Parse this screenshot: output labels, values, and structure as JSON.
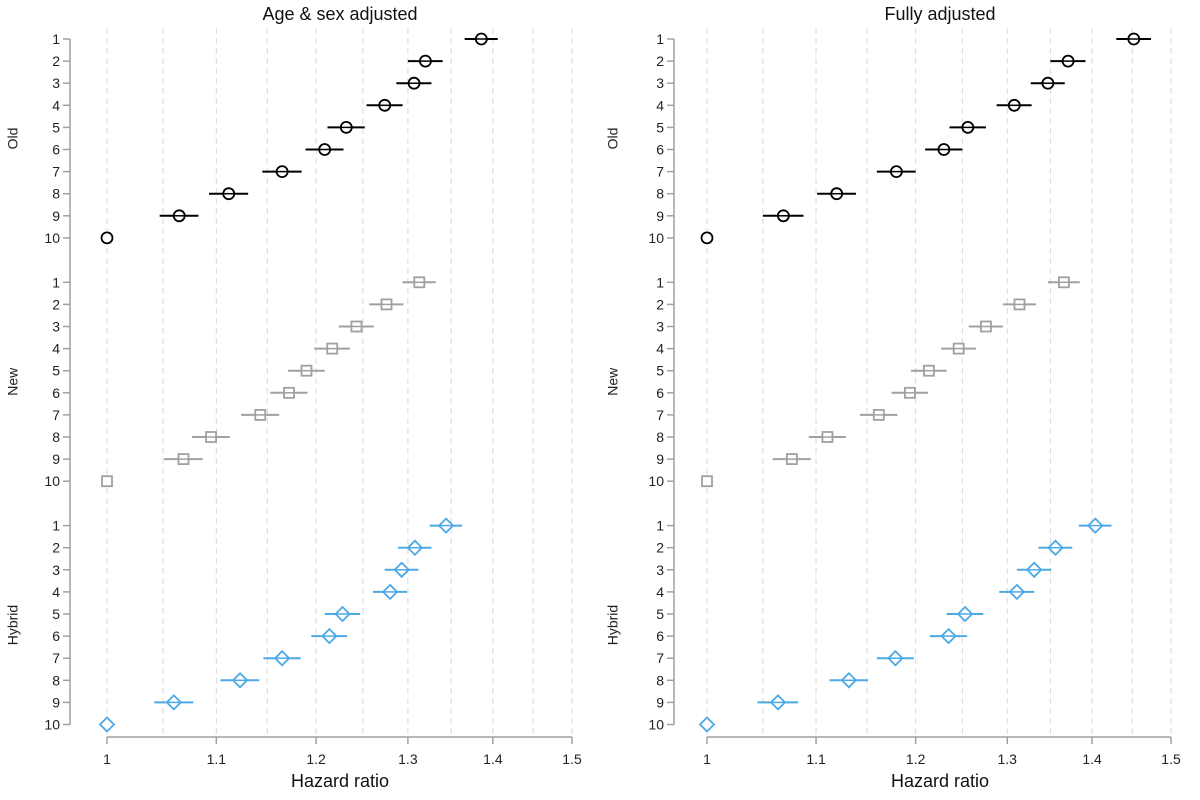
{
  "chart_data": [
    {
      "type": "scatter",
      "subtype": "forest-plot",
      "title": "Age & sex adjusted",
      "xlabel": "Hazard ratio",
      "ylabel": "",
      "xscale": "log",
      "xlim": [
        1,
        1.5
      ],
      "xticks": [
        "1",
        "1.1",
        "1.2",
        "1.3",
        "1.4",
        "1.5"
      ],
      "xtick_values": [
        1,
        1.1,
        1.2,
        1.3,
        1.4,
        1.5
      ],
      "grid": "vertical dashed at 0.05 steps",
      "row_labels": [
        "1",
        "2",
        "3",
        "4",
        "5",
        "6",
        "7",
        "8",
        "9",
        "10"
      ],
      "series": [
        {
          "name": "Old",
          "marker": "circle",
          "color": "#000000",
          "values": [
            1.386,
            1.32,
            1.307,
            1.274,
            1.232,
            1.209,
            1.165,
            1.112,
            1.065,
            1.0
          ],
          "ci_lower": [
            1.366,
            1.3,
            1.287,
            1.254,
            1.212,
            1.189,
            1.145,
            1.093,
            1.047,
            1.0
          ],
          "ci_upper": [
            1.406,
            1.34,
            1.327,
            1.294,
            1.252,
            1.229,
            1.185,
            1.131,
            1.083,
            1.0
          ]
        },
        {
          "name": "New",
          "marker": "square",
          "color": "#a0a0a0",
          "values": [
            1.313,
            1.276,
            1.243,
            1.217,
            1.19,
            1.172,
            1.143,
            1.095,
            1.069,
            1.0
          ],
          "ci_lower": [
            1.294,
            1.257,
            1.224,
            1.198,
            1.171,
            1.153,
            1.124,
            1.077,
            1.051,
            1.0
          ],
          "ci_upper": [
            1.332,
            1.295,
            1.262,
            1.236,
            1.209,
            1.191,
            1.162,
            1.113,
            1.087,
            1.0
          ]
        },
        {
          "name": "Hybrid",
          "marker": "diamond",
          "color": "#4da9e6",
          "values": [
            1.344,
            1.308,
            1.293,
            1.28,
            1.228,
            1.214,
            1.165,
            1.123,
            1.06,
            1.0
          ],
          "ci_lower": [
            1.325,
            1.289,
            1.274,
            1.261,
            1.209,
            1.195,
            1.146,
            1.104,
            1.042,
            1.0
          ],
          "ci_upper": [
            1.363,
            1.327,
            1.312,
            1.299,
            1.247,
            1.233,
            1.184,
            1.142,
            1.078,
            1.0
          ]
        }
      ]
    },
    {
      "type": "scatter",
      "subtype": "forest-plot",
      "title": "Fully adjusted",
      "xlabel": "Hazard ratio",
      "ylabel": "",
      "xscale": "log",
      "xlim": [
        1,
        1.5
      ],
      "xticks": [
        "1",
        "1.1",
        "1.2",
        "1.3",
        "1.4",
        "1.5"
      ],
      "xtick_values": [
        1,
        1.1,
        1.2,
        1.3,
        1.4,
        1.5
      ],
      "grid": "vertical dashed at 0.05 steps",
      "row_labels": [
        "1",
        "2",
        "3",
        "4",
        "5",
        "6",
        "7",
        "8",
        "9",
        "10"
      ],
      "series": [
        {
          "name": "Old",
          "marker": "circle",
          "color": "#000000",
          "values": [
            1.452,
            1.371,
            1.347,
            1.308,
            1.256,
            1.23,
            1.18,
            1.12,
            1.069,
            1.0
          ],
          "ci_lower": [
            1.43,
            1.35,
            1.327,
            1.288,
            1.236,
            1.21,
            1.16,
            1.101,
            1.05,
            1.0
          ],
          "ci_upper": [
            1.474,
            1.392,
            1.367,
            1.328,
            1.276,
            1.25,
            1.2,
            1.139,
            1.088,
            1.0
          ]
        },
        {
          "name": "New",
          "marker": "square",
          "color": "#a0a0a0",
          "values": [
            1.366,
            1.314,
            1.276,
            1.246,
            1.214,
            1.194,
            1.162,
            1.111,
            1.077,
            1.0
          ],
          "ci_lower": [
            1.347,
            1.295,
            1.257,
            1.227,
            1.195,
            1.175,
            1.143,
            1.093,
            1.059,
            1.0
          ],
          "ci_upper": [
            1.385,
            1.333,
            1.295,
            1.265,
            1.233,
            1.213,
            1.181,
            1.129,
            1.095,
            1.0
          ]
        },
        {
          "name": "Hybrid",
          "marker": "diamond",
          "color": "#4da9e6",
          "values": [
            1.404,
            1.356,
            1.331,
            1.311,
            1.253,
            1.235,
            1.179,
            1.132,
            1.064,
            1.0
          ],
          "ci_lower": [
            1.384,
            1.336,
            1.311,
            1.291,
            1.233,
            1.215,
            1.16,
            1.113,
            1.045,
            1.0
          ],
          "ci_upper": [
            1.424,
            1.376,
            1.351,
            1.331,
            1.273,
            1.255,
            1.198,
            1.151,
            1.083,
            1.0
          ]
        }
      ]
    }
  ]
}
